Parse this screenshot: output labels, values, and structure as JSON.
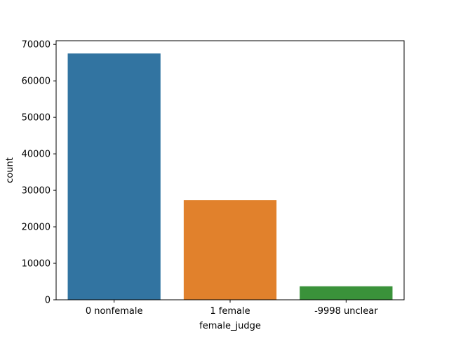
{
  "chart_data": {
    "type": "bar",
    "categories": [
      "0 nonfemale",
      "1 female",
      "-9998 unclear"
    ],
    "values": [
      67500,
      27300,
      3700
    ],
    "colors": [
      "#3274a1",
      "#e1812c",
      "#3a923a"
    ],
    "xlabel": "female_judge",
    "ylabel": "count",
    "ylim": [
      0,
      71000
    ],
    "yticks": [
      0,
      10000,
      20000,
      30000,
      40000,
      50000,
      60000,
      70000
    ],
    "grid": false,
    "legend": "none"
  }
}
